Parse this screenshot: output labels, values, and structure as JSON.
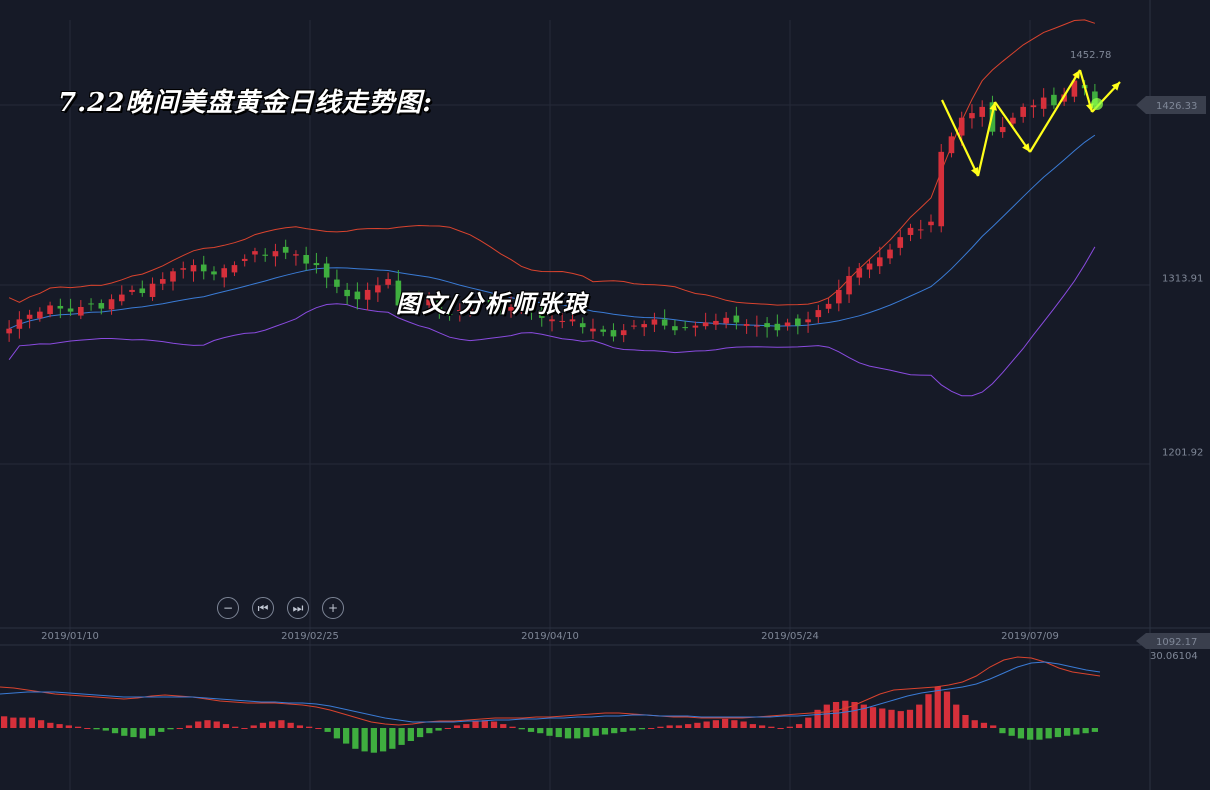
{
  "title": "7.22晚间美盘黄金日线走势图:",
  "watermark": "图文/分析师张琅",
  "colors": {
    "background": "#161a27",
    "grid": "#252a38",
    "up": "#d6303b",
    "down": "#3fae3f",
    "band_upper": "#d9432e",
    "band_mid": "#3a7bd5",
    "band_lower": "#8a4be0",
    "macd_dif": "#d9432e",
    "macd_dea": "#3a7bd5",
    "arrow": "#ffff1a"
  },
  "controls": [
    {
      "name": "zoom-out-button",
      "icon": "minus-icon",
      "glyph": "−"
    },
    {
      "name": "prev-button",
      "icon": "step-back-icon",
      "glyph": "⏮"
    },
    {
      "name": "next-button",
      "icon": "step-forward-icon",
      "glyph": "⏭"
    },
    {
      "name": "zoom-in-button",
      "icon": "plus-icon",
      "glyph": "+"
    }
  ],
  "chart_data": {
    "type": "candlestick",
    "price_labels": [
      "1313.91",
      "1201.92"
    ],
    "price_ticks": [
      1313.91,
      1201.92
    ],
    "high_label": "1452.78",
    "last_price": "1426.33",
    "macd_top_label": "30.06104",
    "bottom_price_label": "1092.17",
    "date_labels": [
      "2019/01/10",
      "2019/02/25",
      "2019/04/10",
      "2019/05/24",
      "2019/07/09"
    ],
    "ylim": [
      1090,
      1480
    ],
    "closes": [
      1281,
      1287,
      1290,
      1292,
      1296,
      1294,
      1292,
      1295,
      1297,
      1294,
      1300,
      1303,
      1306,
      1304,
      1310,
      1313,
      1318,
      1320,
      1322,
      1318,
      1316,
      1320,
      1322,
      1326,
      1331,
      1328,
      1331,
      1330,
      1329,
      1323,
      1322,
      1314,
      1308,
      1302,
      1300,
      1306,
      1309,
      1313,
      1296,
      1298,
      1297,
      1300,
      1293,
      1290,
      1293,
      1295,
      1300,
      1298,
      1292,
      1295,
      1296,
      1292,
      1288,
      1287,
      1286,
      1287,
      1282,
      1281,
      1279,
      1276,
      1280,
      1283,
      1284,
      1287,
      1283,
      1280,
      1282,
      1283,
      1285,
      1286,
      1288,
      1285,
      1284,
      1283,
      1282,
      1280,
      1285,
      1283,
      1287,
      1293,
      1297,
      1306,
      1315,
      1320,
      1323,
      1327,
      1332,
      1340,
      1346,
      1345,
      1350,
      1395,
      1405,
      1417,
      1420,
      1424,
      1408,
      1411,
      1417,
      1424,
      1425,
      1430,
      1425,
      1432,
      1441,
      1436,
      1425
    ],
    "open_offsets_note": "",
    "macd": {
      "hist": [
        9,
        8,
        8,
        8,
        6,
        4,
        3,
        2,
        1,
        0,
        -1,
        -2,
        -4,
        -6,
        -7,
        -8,
        -6,
        -3,
        -1,
        0,
        2,
        5,
        6,
        5,
        3,
        1,
        0,
        2,
        4,
        5,
        6,
        4,
        2,
        1,
        0,
        -3,
        -8,
        -12,
        -16,
        -18,
        -19,
        -18,
        -16,
        -13,
        -10,
        -7,
        -4,
        -2,
        0,
        2,
        3,
        5,
        6,
        5,
        3,
        1,
        -1,
        -3,
        -4,
        -6,
        -7,
        -8,
        -8,
        -7,
        -6,
        -5,
        -4,
        -3,
        -2,
        -1,
        0,
        1,
        2,
        2,
        3,
        4,
        5,
        6,
        7,
        6,
        5,
        3,
        2,
        1,
        0,
        1,
        3,
        8,
        14,
        18,
        20,
        21,
        20,
        18,
        16,
        15,
        14,
        13,
        14,
        18,
        26,
        32,
        28,
        18,
        10,
        6,
        4,
        2,
        -4,
        -6,
        -8,
        -9,
        -9,
        -8,
        -7,
        -6,
        -5,
        -4,
        -3
      ],
      "dif": [
        25,
        24,
        22,
        20,
        18,
        17,
        16,
        15,
        14,
        13,
        14,
        16,
        17,
        16,
        15,
        13,
        11,
        10,
        9,
        9,
        9,
        8,
        7,
        5,
        2,
        -2,
        -6,
        -10,
        -12,
        -13,
        -12,
        -10,
        -9,
        -9,
        -8,
        -7,
        -6,
        -6,
        -6,
        -5,
        -5,
        -4,
        -3,
        -2,
        -1,
        -1,
        -2,
        -3,
        -4,
        -5,
        -5,
        -6,
        -6,
        -6,
        -6,
        -5,
        -4,
        -3,
        -2,
        -1,
        0,
        2,
        6,
        12,
        18,
        22,
        23,
        24,
        25,
        27,
        30,
        36,
        45,
        52,
        55,
        54,
        50,
        44,
        40,
        38,
        36
      ],
      "dea": [
        18,
        19,
        20,
        20,
        20,
        19,
        18,
        17,
        16,
        15,
        15,
        15,
        15,
        15,
        15,
        14,
        13,
        12,
        11,
        10,
        10,
        9,
        9,
        8,
        6,
        3,
        0,
        -3,
        -6,
        -8,
        -10,
        -10,
        -10,
        -10,
        -9,
        -9,
        -8,
        -8,
        -7,
        -7,
        -6,
        -6,
        -5,
        -5,
        -4,
        -4,
        -3,
        -3,
        -4,
        -4,
        -4,
        -5,
        -5,
        -5,
        -5,
        -5,
        -5,
        -4,
        -4,
        -3,
        -2,
        -1,
        1,
        4,
        8,
        12,
        16,
        19,
        21,
        23,
        25,
        28,
        33,
        39,
        45,
        49,
        50,
        48,
        45,
        42,
        40
      ]
    }
  }
}
